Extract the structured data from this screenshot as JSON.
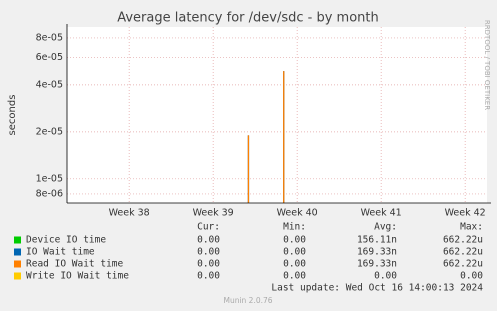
{
  "chart_data": {
    "type": "line",
    "title": "Average latency for /dev/sdc - by month",
    "y_label": "seconds",
    "log_y": true,
    "grid": true,
    "xlim": [
      37.26,
      42.26
    ],
    "xticks": [
      {
        "value": 38,
        "label": "Week 38"
      },
      {
        "value": 39,
        "label": "Week 39"
      },
      {
        "value": 40,
        "label": "Week 40"
      },
      {
        "value": 41,
        "label": "Week 41"
      },
      {
        "value": 42,
        "label": "Week 42"
      }
    ],
    "ylim": [
      7e-06,
      9.4e-05
    ],
    "yticks": [
      {
        "value": 8e-06,
        "label": "8e-06"
      },
      {
        "value": 1e-05,
        "label": "1e-05"
      },
      {
        "value": 2e-05,
        "label": "2e-05"
      },
      {
        "value": 4e-05,
        "label": "4e-05"
      },
      {
        "value": 6e-05,
        "label": "6e-05"
      },
      {
        "value": 8e-05,
        "label": "8e-05"
      }
    ],
    "stat_headers": [
      "Cur:",
      "Min:",
      "Avg:",
      "Max:"
    ],
    "series": [
      {
        "name": "Device IO time",
        "color": "#00cc00",
        "x": [],
        "values": [],
        "stats": [
          "0.00",
          "0.00",
          "156.11n",
          "662.22u"
        ]
      },
      {
        "name": "IO Wait time",
        "color": "#0066b3",
        "x": [
          39.42,
          39.84
        ],
        "values": [
          1.9e-05,
          4.9e-05
        ],
        "stats": [
          "0.00",
          "0.00",
          "169.33n",
          "662.22u"
        ]
      },
      {
        "name": "Read IO Wait time",
        "color": "#ff8000",
        "x": [
          39.42,
          39.84
        ],
        "values": [
          1.9e-05,
          4.9e-05
        ],
        "stats": [
          "0.00",
          "0.00",
          "169.33n",
          "662.22u"
        ]
      },
      {
        "name": "Write IO Wait time",
        "color": "#ffcc00",
        "x": [],
        "values": [],
        "stats": [
          "0.00",
          "0.00",
          "0.00",
          "0.00"
        ]
      }
    ],
    "last_update": "Last update: Wed Oct 16 14:00:13 2024",
    "footer": "Munin 2.0.76",
    "side_label": "RRDTOOL / TOBI OETIKER"
  }
}
